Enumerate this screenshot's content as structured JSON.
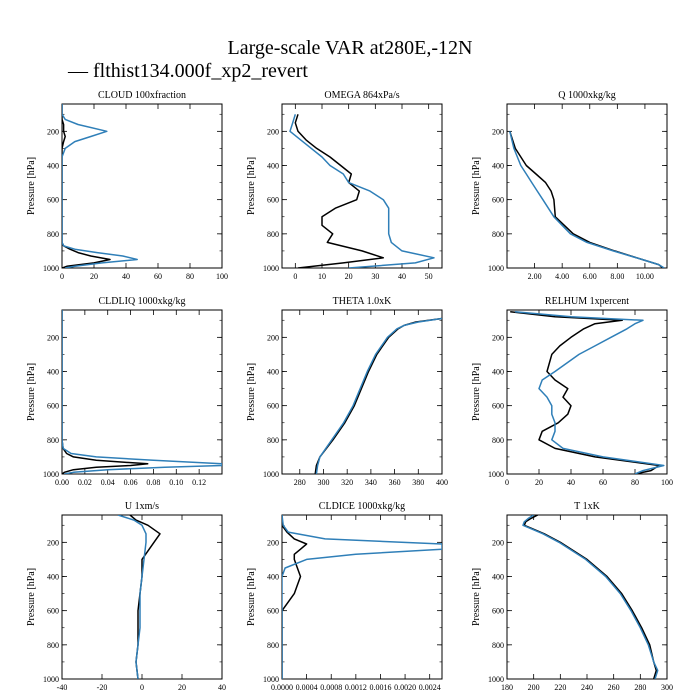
{
  "title": "Large-scale VAR at280E,-12N",
  "legend": {
    "label": "— flthist134.000f_xp2_revert",
    "color": "#2f7fb8"
  },
  "colors": {
    "series_a": "#000000",
    "series_b": "#2f7fb8"
  },
  "chart_data": [
    {
      "type": "line",
      "title": "CLOUD  100xfraction",
      "ylabel": "Pressure [hPa]",
      "xlim": [
        0,
        100
      ],
      "ylim": [
        1000,
        40
      ],
      "xticks": [
        0,
        20,
        40,
        60,
        80,
        100
      ],
      "xtick_labels": [
        "0",
        "20",
        "40",
        "60",
        "80",
        "100"
      ],
      "yticks": [
        200,
        400,
        600,
        800,
        1000
      ],
      "ytick_labels": [
        "200",
        "400",
        "600",
        "800",
        "1000"
      ],
      "p": [
        40,
        70,
        100,
        130,
        160,
        200,
        230,
        260,
        300,
        350,
        400,
        600,
        800,
        850,
        870,
        890,
        910,
        930,
        950,
        970,
        990,
        1000
      ],
      "series": [
        {
          "values": [
            0,
            0,
            0,
            0,
            1,
            1,
            2,
            1,
            0,
            0,
            0,
            0,
            0,
            0,
            1,
            5,
            10,
            18,
            30,
            20,
            3,
            0
          ]
        },
        {
          "values": [
            0,
            0,
            0,
            2,
            10,
            28,
            18,
            8,
            2,
            0,
            0,
            0,
            0,
            0,
            1,
            8,
            22,
            38,
            47,
            25,
            8,
            2
          ]
        }
      ]
    },
    {
      "type": "line",
      "title": "OMEGA  864xPa/s",
      "ylabel": "Pressure [hPa]",
      "xlim": [
        -5,
        55
      ],
      "ylim": [
        1000,
        40
      ],
      "xticks": [
        0,
        10,
        20,
        30,
        40,
        50
      ],
      "xtick_labels": [
        "0",
        "10",
        "20",
        "30",
        "40",
        "50"
      ],
      "yticks": [
        200,
        400,
        600,
        800,
        1000
      ],
      "ytick_labels": [
        "200",
        "400",
        "600",
        "800",
        "1000"
      ],
      "p": [
        100,
        150,
        200,
        250,
        300,
        350,
        400,
        450,
        500,
        550,
        600,
        650,
        700,
        750,
        800,
        850,
        900,
        940,
        970,
        1000
      ],
      "series": [
        {
          "values": [
            1,
            0,
            1,
            4,
            8,
            13,
            17,
            21,
            20,
            24,
            23,
            15,
            10,
            10,
            14,
            12,
            25,
            33,
            18,
            1
          ]
        },
        {
          "values": [
            0,
            -1,
            -2,
            2,
            6,
            10,
            13,
            18,
            20,
            28,
            33,
            35,
            35,
            35,
            35,
            36,
            40,
            52,
            45,
            20
          ]
        }
      ]
    },
    {
      "type": "line",
      "title": "Q  1000xkg/kg",
      "ylabel": "Pressure [hPa]",
      "xlim": [
        0,
        11.6
      ],
      "ylim": [
        1000,
        40
      ],
      "xticks": [
        2,
        4,
        6,
        8,
        10
      ],
      "xtick_labels": [
        "2.00",
        "4.00",
        "6.00",
        "8.00",
        "10.00"
      ],
      "yticks": [
        200,
        400,
        600,
        800,
        1000
      ],
      "ytick_labels": [
        "200",
        "400",
        "600",
        "800",
        "1000"
      ],
      "p": [
        200,
        300,
        400,
        450,
        500,
        550,
        600,
        700,
        800,
        850,
        900,
        950,
        980,
        1000
      ],
      "series": [
        {
          "values": [
            0.2,
            0.6,
            1.4,
            2.1,
            2.8,
            3.2,
            3.4,
            3.5,
            4.8,
            6.0,
            7.8,
            9.8,
            11.0,
            11.3
          ]
        },
        {
          "values": [
            0.2,
            0.5,
            1.0,
            1.4,
            1.8,
            2.2,
            2.6,
            3.4,
            4.6,
            5.8,
            7.7,
            9.8,
            11.0,
            11.4
          ]
        }
      ]
    },
    {
      "type": "line",
      "title": "CLDLIQ  1000xkg/kg",
      "ylabel": "Pressure [hPa]",
      "xlim": [
        0,
        0.14
      ],
      "ylim": [
        1000,
        40
      ],
      "xticks": [
        0,
        0.02,
        0.04,
        0.06,
        0.08,
        0.1,
        0.12
      ],
      "xtick_labels": [
        "0.00",
        "0.02",
        "0.04",
        "0.06",
        "0.08",
        "0.10",
        "0.12"
      ],
      "yticks": [
        200,
        400,
        600,
        800,
        1000
      ],
      "ytick_labels": [
        "200",
        "400",
        "600",
        "800",
        "1000"
      ],
      "p": [
        40,
        600,
        800,
        850,
        880,
        900,
        920,
        940,
        950,
        960,
        975,
        990,
        1000
      ],
      "series": [
        {
          "values": [
            0,
            0,
            0,
            0.001,
            0.004,
            0.01,
            0.03,
            0.075,
            0.06,
            0.03,
            0.01,
            0.002,
            0
          ]
        },
        {
          "values": [
            0,
            0,
            0,
            0.001,
            0.008,
            0.03,
            0.08,
            0.14,
            0.14,
            0.09,
            0.04,
            0.01,
            0.002
          ]
        }
      ]
    },
    {
      "type": "line",
      "title": "THETA  1.0xK",
      "ylabel": "Pressure [hPa]",
      "xlim": [
        265,
        400
      ],
      "ylim": [
        1000,
        40
      ],
      "xticks": [
        280,
        300,
        320,
        340,
        360,
        380,
        400
      ],
      "xtick_labels": [
        "280",
        "300",
        "320",
        "340",
        "360",
        "380",
        "400"
      ],
      "yticks": [
        200,
        400,
        600,
        800,
        1000
      ],
      "ytick_labels": [
        "200",
        "400",
        "600",
        "800",
        "1000"
      ],
      "p": [
        90,
        110,
        130,
        150,
        200,
        300,
        400,
        500,
        600,
        700,
        800,
        900,
        950,
        1000
      ],
      "series": [
        {
          "values": [
            400,
            378,
            368,
            363,
            355,
            345,
            338,
            332,
            326,
            318,
            308,
            297,
            294,
            293
          ]
        },
        {
          "values": [
            400,
            380,
            368,
            362,
            354,
            344,
            337,
            331,
            325,
            317,
            307,
            297,
            295,
            294
          ]
        }
      ]
    },
    {
      "type": "line",
      "title": "RELHUM  1xpercent",
      "ylabel": "Pressure [hPa]",
      "xlim": [
        0,
        100
      ],
      "ylim": [
        1000,
        40
      ],
      "xticks": [
        0,
        20,
        40,
        60,
        80,
        100
      ],
      "xtick_labels": [
        "0",
        "20",
        "40",
        "60",
        "80",
        "100"
      ],
      "yticks": [
        200,
        400,
        600,
        800,
        1000
      ],
      "ytick_labels": [
        "200",
        "400",
        "600",
        "800",
        "1000"
      ],
      "p": [
        50,
        80,
        100,
        120,
        150,
        200,
        250,
        300,
        400,
        450,
        500,
        550,
        600,
        650,
        700,
        750,
        800,
        850,
        900,
        950,
        980,
        1000
      ],
      "series": [
        {
          "values": [
            2,
            30,
            72,
            55,
            48,
            40,
            33,
            28,
            25,
            30,
            38,
            35,
            40,
            38,
            32,
            22,
            20,
            30,
            55,
            95,
            90,
            80
          ]
        },
        {
          "values": [
            5,
            40,
            85,
            80,
            75,
            65,
            55,
            45,
            30,
            22,
            20,
            25,
            28,
            28,
            30,
            30,
            28,
            35,
            60,
            98,
            85,
            80
          ]
        }
      ]
    },
    {
      "type": "line",
      "title": "U  1xm/s",
      "ylabel": "Pressure [hPa]",
      "xlim": [
        -40,
        40
      ],
      "ylim": [
        1000,
        40
      ],
      "xticks": [
        -40,
        -20,
        0,
        20,
        40
      ],
      "xtick_labels": [
        "-40",
        "-20",
        "0",
        "20",
        "40"
      ],
      "yticks": [
        200,
        400,
        600,
        800,
        1000
      ],
      "ytick_labels": [
        "200",
        "400",
        "600",
        "800",
        "1000"
      ],
      "p": [
        40,
        70,
        100,
        150,
        200,
        300,
        400,
        500,
        600,
        700,
        800,
        900,
        1000
      ],
      "series": [
        {
          "values": [
            -6,
            -3,
            3,
            9,
            6,
            0,
            0,
            -1,
            -2,
            -2,
            -2,
            -3,
            -2
          ]
        },
        {
          "values": [
            -12,
            -4,
            0,
            2,
            2,
            1,
            0,
            -1,
            -1,
            -1,
            -2,
            -3,
            -2
          ]
        }
      ]
    },
    {
      "type": "line",
      "title": "CLDICE  1000xkg/kg",
      "ylabel": "Pressure [hPa]",
      "xlim": [
        0,
        0.0026
      ],
      "ylim": [
        1000,
        40
      ],
      "xticks": [
        0,
        0.0004,
        0.0008,
        0.0012,
        0.0016,
        0.002,
        0.0024
      ],
      "xtick_labels": [
        "0.0000",
        "0.0004",
        "0.0008",
        "0.0012",
        "0.0016",
        "0.0020",
        "0.0024"
      ],
      "yticks": [
        200,
        400,
        600,
        800,
        1000
      ],
      "ytick_labels": [
        "200",
        "400",
        "600",
        "800",
        "1000"
      ],
      "p": [
        40,
        100,
        140,
        180,
        210,
        240,
        270,
        300,
        350,
        400,
        450,
        500,
        550,
        600,
        650,
        1000
      ],
      "series": [
        {
          "values": [
            0,
            0,
            8e-05,
            0.0002,
            0.0004,
            0.0003,
            0.0002,
            0.0002,
            0.00025,
            0.0003,
            0.00025,
            0.0002,
            0.0001,
            0,
            0,
            0
          ]
        },
        {
          "values": [
            0,
            2e-05,
            0.0001,
            0.0007,
            0.0026,
            0.0026,
            0.0012,
            0.0004,
            5e-05,
            0,
            0,
            0,
            0,
            0,
            0,
            0
          ]
        }
      ]
    },
    {
      "type": "line",
      "title": "T  1xK",
      "ylabel": "Pressure [hPa]",
      "xlim": [
        180,
        300
      ],
      "ylim": [
        1000,
        40
      ],
      "xticks": [
        180,
        200,
        220,
        240,
        260,
        280,
        300
      ],
      "xtick_labels": [
        "180",
        "200",
        "220",
        "240",
        "260",
        "280",
        "300"
      ],
      "yticks": [
        200,
        400,
        600,
        800,
        1000
      ],
      "ytick_labels": [
        "200",
        "400",
        "600",
        "800",
        "1000"
      ],
      "p": [
        40,
        60,
        80,
        100,
        120,
        150,
        200,
        300,
        400,
        500,
        600,
        700,
        800,
        900,
        950,
        1000
      ],
      "series": [
        {
          "values": [
            203,
            198,
            194,
            193,
            199,
            208,
            220,
            240,
            255,
            266,
            274,
            281,
            287,
            290,
            292,
            290
          ]
        },
        {
          "values": [
            200,
            196,
            193,
            192,
            198,
            207,
            219,
            239,
            254,
            265,
            273,
            280,
            286,
            290,
            293,
            291
          ]
        }
      ]
    }
  ]
}
